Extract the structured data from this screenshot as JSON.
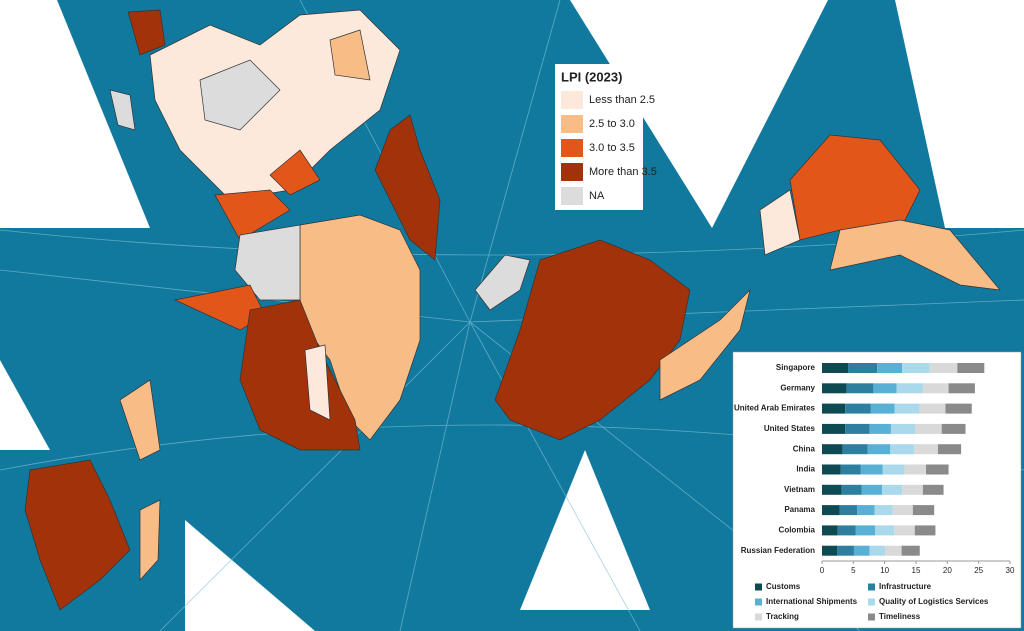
{
  "map": {
    "legend": {
      "title": "LPI (2023)",
      "items": [
        {
          "label": "Less than 2.5",
          "color": "#fde8dc"
        },
        {
          "label": "2.5 to 3.0",
          "color": "#f8bc87"
        },
        {
          "label": "3.0 to 3.5",
          "color": "#e3561a"
        },
        {
          "label": "More than 3.5",
          "color": "#a23209"
        },
        {
          "label": "NA",
          "color": "#dcdcdc"
        }
      ]
    }
  },
  "chart_data": {
    "type": "bar",
    "orientation": "horizontal",
    "stacked": true,
    "categories": [
      "Singapore",
      "Germany",
      "United Arab Emirates",
      "United States",
      "China",
      "India",
      "Vietnam",
      "Panama",
      "Colombia",
      "Russian Federation"
    ],
    "series": [
      {
        "name": "Customs",
        "color": "#0e4a52",
        "values": [
          4.2,
          3.9,
          3.7,
          3.7,
          3.3,
          3.0,
          3.1,
          2.8,
          2.5,
          2.4
        ]
      },
      {
        "name": "Infrastructure",
        "color": "#2e7f9f",
        "values": [
          4.6,
          4.3,
          4.1,
          3.9,
          4.0,
          3.2,
          3.2,
          2.8,
          2.9,
          2.7
        ]
      },
      {
        "name": "International Shipments",
        "color": "#58b0d4",
        "values": [
          4.0,
          3.7,
          3.8,
          3.4,
          3.6,
          3.5,
          3.3,
          2.8,
          3.1,
          2.5
        ]
      },
      {
        "name": "Quality of Logistics Services",
        "color": "#a9d9eb",
        "values": [
          4.4,
          4.2,
          4.0,
          3.9,
          3.8,
          3.5,
          3.2,
          2.9,
          3.0,
          2.5
        ]
      },
      {
        "name": "Tracking",
        "color": "#d9d9d9",
        "values": [
          4.4,
          4.1,
          4.1,
          4.2,
          3.8,
          3.4,
          3.3,
          3.2,
          3.3,
          2.6
        ]
      },
      {
        "name": "Timeliness",
        "color": "#8a8a8a",
        "values": [
          4.3,
          4.2,
          4.2,
          3.8,
          3.7,
          3.6,
          3.3,
          3.4,
          3.3,
          2.9
        ]
      }
    ],
    "xlim": [
      0,
      30
    ],
    "xticks": [
      0,
      5,
      10,
      15,
      20,
      25,
      30
    ],
    "grid": false
  }
}
